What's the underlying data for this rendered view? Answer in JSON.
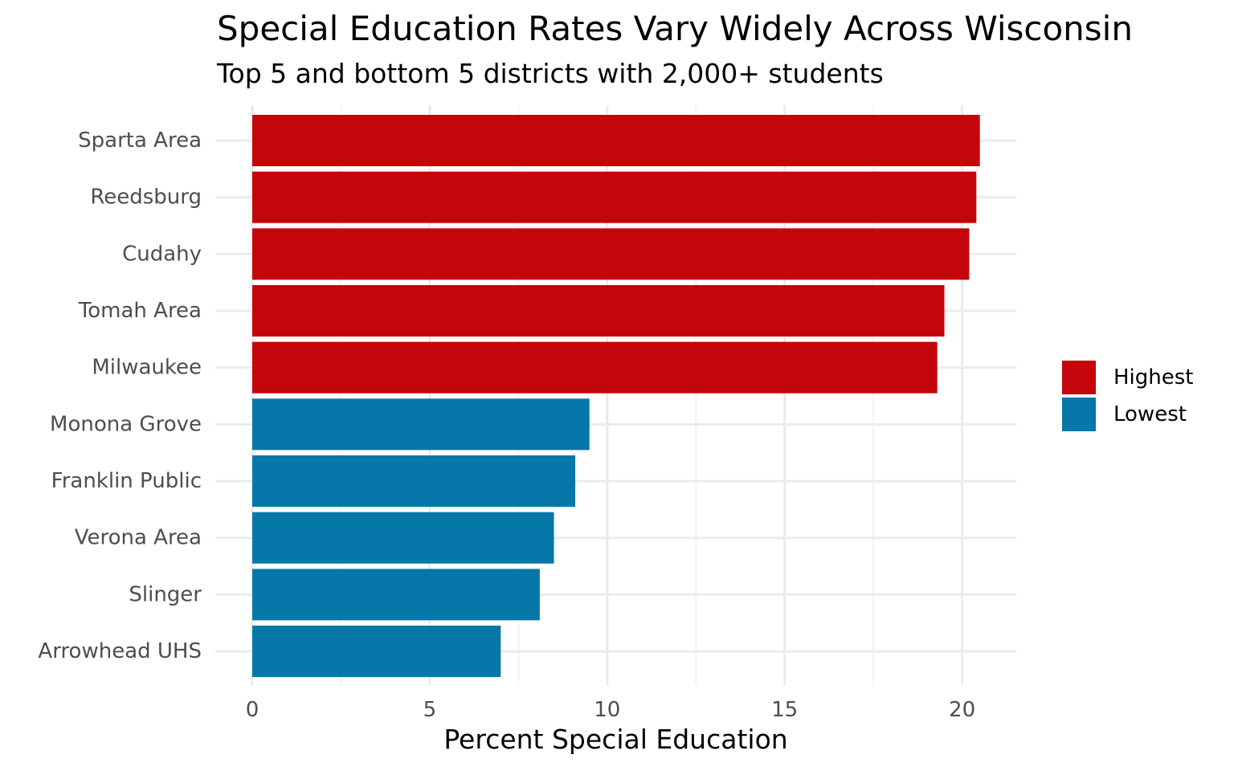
{
  "chart_data": {
    "type": "bar",
    "orientation": "horizontal",
    "title": "Special Education Rates Vary Widely Across Wisconsin",
    "subtitle": "Top 5 and bottom 5 districts with 2,000+ students",
    "xlabel": "Percent Special Education",
    "ylabel": "",
    "xlim": [
      0,
      21.5
    ],
    "x_ticks": [
      0,
      5,
      10,
      15,
      20
    ],
    "grid": true,
    "legend_position": "right",
    "categories": [
      "Sparta Area",
      "Reedsburg",
      "Cudahy",
      "Tomah Area",
      "Milwaukee",
      "Monona Grove",
      "Franklin Public",
      "Verona Area",
      "Slinger",
      "Arrowhead UHS"
    ],
    "values": [
      20.5,
      20.4,
      20.2,
      19.5,
      19.3,
      9.5,
      9.1,
      8.5,
      8.1,
      7.0
    ],
    "groups": [
      "Highest",
      "Highest",
      "Highest",
      "Highest",
      "Highest",
      "Lowest",
      "Lowest",
      "Lowest",
      "Lowest",
      "Lowest"
    ],
    "legend": [
      {
        "name": "Highest",
        "color": "#c4050c"
      },
      {
        "name": "Lowest",
        "color": "#0577a8"
      }
    ]
  }
}
